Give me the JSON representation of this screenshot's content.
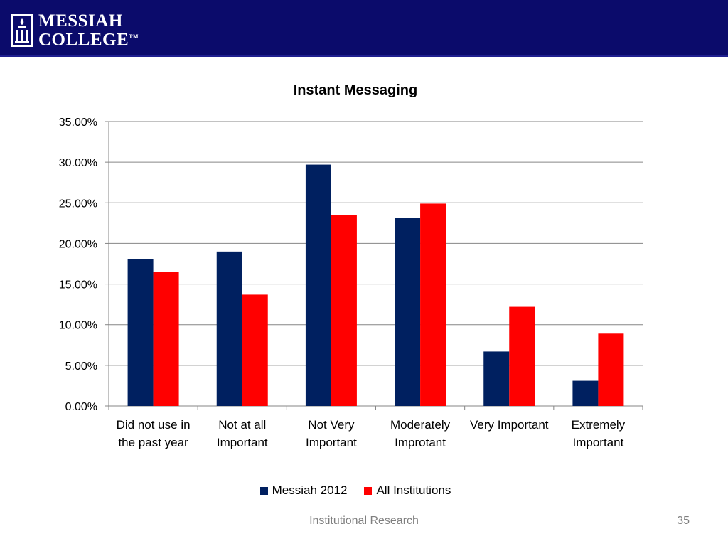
{
  "header": {
    "logo_line1": "MESSIAH",
    "logo_line2": "COLLEGE",
    "logo_tm": "TM",
    "background_color": "#0b0b6b"
  },
  "chart_data": {
    "type": "bar",
    "title": "Instant Messaging",
    "categories": [
      [
        "Did not use in",
        "the past year"
      ],
      [
        "Not at all",
        "Important"
      ],
      [
        "Not Very",
        "Important"
      ],
      [
        "Moderately",
        "Improtant"
      ],
      [
        "Very Important",
        ""
      ],
      [
        "Extremely",
        "Important"
      ]
    ],
    "series": [
      {
        "name": "Messiah 2012",
        "color": "#002060",
        "values": [
          18.1,
          19.0,
          29.7,
          23.1,
          6.7,
          3.1
        ]
      },
      {
        "name": "All Institutions",
        "color": "#ff0000",
        "values": [
          16.5,
          13.7,
          23.5,
          24.9,
          12.2,
          8.9
        ]
      }
    ],
    "ylim": [
      0,
      35
    ],
    "yticks": [
      "0.00%",
      "5.00%",
      "10.00%",
      "15.00%",
      "20.00%",
      "25.00%",
      "30.00%",
      "35.00%"
    ],
    "grid": true,
    "legend_position": "bottom"
  },
  "footer": {
    "text": "Institutional Research",
    "page_number": "35"
  }
}
